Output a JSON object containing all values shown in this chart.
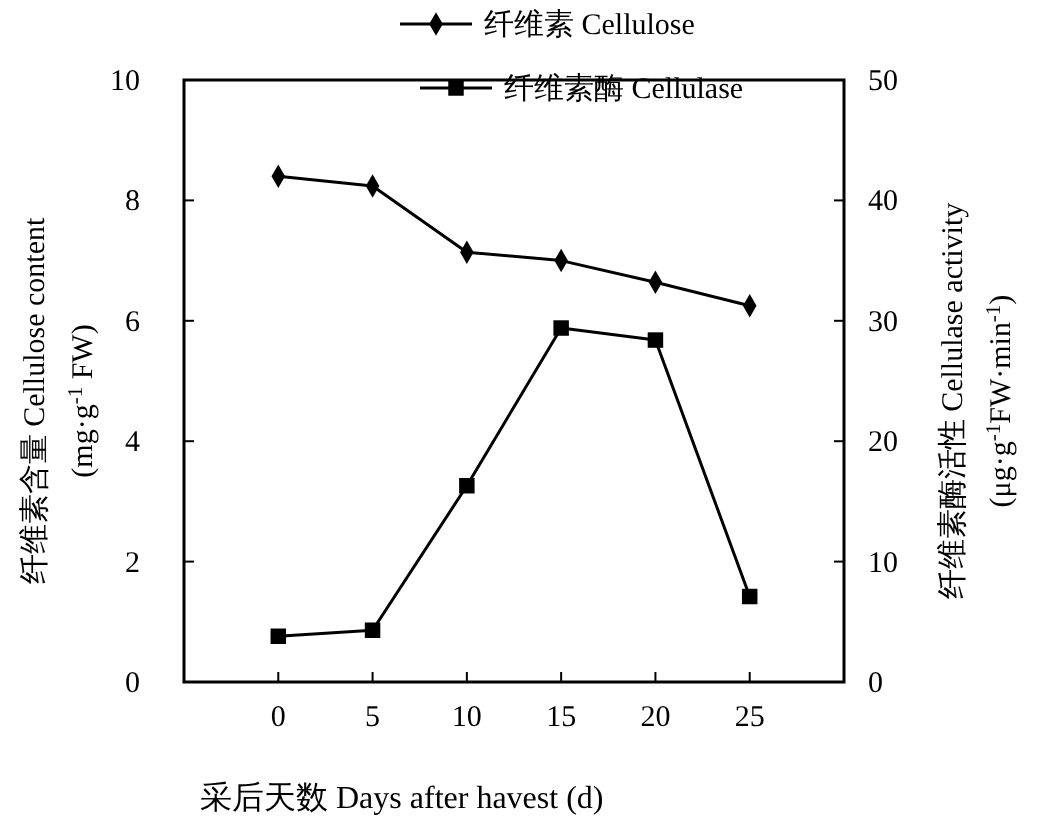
{
  "chart_data": {
    "type": "line",
    "xlabel": "采后天数  Days after havest (d)",
    "ylabel": "纤维素含量 Cellulose content\n(mg·g$^{-1}$ FW)",
    "y2label": "纤维素酶活性  Cellulase activity\n(μg·g$^{-1}$FW·min$^{-1}$)",
    "x": [
      0,
      5,
      10,
      15,
      20,
      25
    ],
    "xlim": [
      -5,
      30
    ],
    "xticks": [
      0,
      5,
      10,
      15,
      20,
      25
    ],
    "ylim": [
      0,
      10
    ],
    "yticks": [
      0,
      2,
      4,
      6,
      8,
      10
    ],
    "y2lim": [
      0,
      50
    ],
    "y2ticks": [
      0,
      10,
      20,
      30,
      40,
      50
    ],
    "legend": "top",
    "line_style": "solid",
    "series": [
      {
        "name": "纤维素 Cellulose",
        "color": "#000000",
        "marker": "diamond",
        "values": [
          8.4,
          8.24,
          7.14,
          7.0,
          6.64,
          6.25
        ]
      },
      {
        "name": "纤维素酶 Cellulase",
        "color": "#000000",
        "marker": "square",
        "axis": "y2",
        "values": [
          3.8,
          4.3,
          16.3,
          29.4,
          28.4,
          7.1
        ]
      }
    ]
  }
}
